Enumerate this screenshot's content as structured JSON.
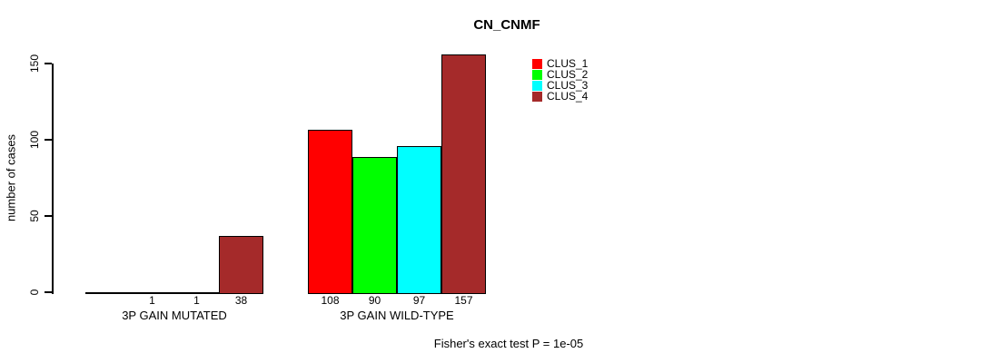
{
  "chart_data": {
    "type": "bar",
    "title": "CN_CNMF",
    "xlabel": "",
    "ylabel": "number of cases",
    "ylim": [
      0,
      150
    ],
    "yticks": [
      "0",
      "50",
      "100",
      "150"
    ],
    "grid": false,
    "legend_position": "top-right",
    "categories": [
      "3P GAIN MUTATED",
      "3P GAIN WILD-TYPE"
    ],
    "series": [
      {
        "name": "CLUS_1",
        "color": "#FF0000",
        "values": [
          0,
          108
        ]
      },
      {
        "name": "CLUS_2",
        "color": "#00FF00",
        "values": [
          1,
          90
        ]
      },
      {
        "name": "CLUS_3",
        "color": "#00FFFF",
        "values": [
          1,
          97
        ]
      },
      {
        "name": "CLUS_4",
        "color": "#A52A2A",
        "values": [
          38,
          157
        ]
      }
    ],
    "bar_value_labels": [
      [
        "",
        "1",
        "1",
        "38"
      ],
      [
        "108",
        "90",
        "97",
        "157"
      ]
    ],
    "bar_border_color": "#000000",
    "axis_color": "#000000",
    "annotation": "Fisher's exact test P = 1e-05"
  }
}
